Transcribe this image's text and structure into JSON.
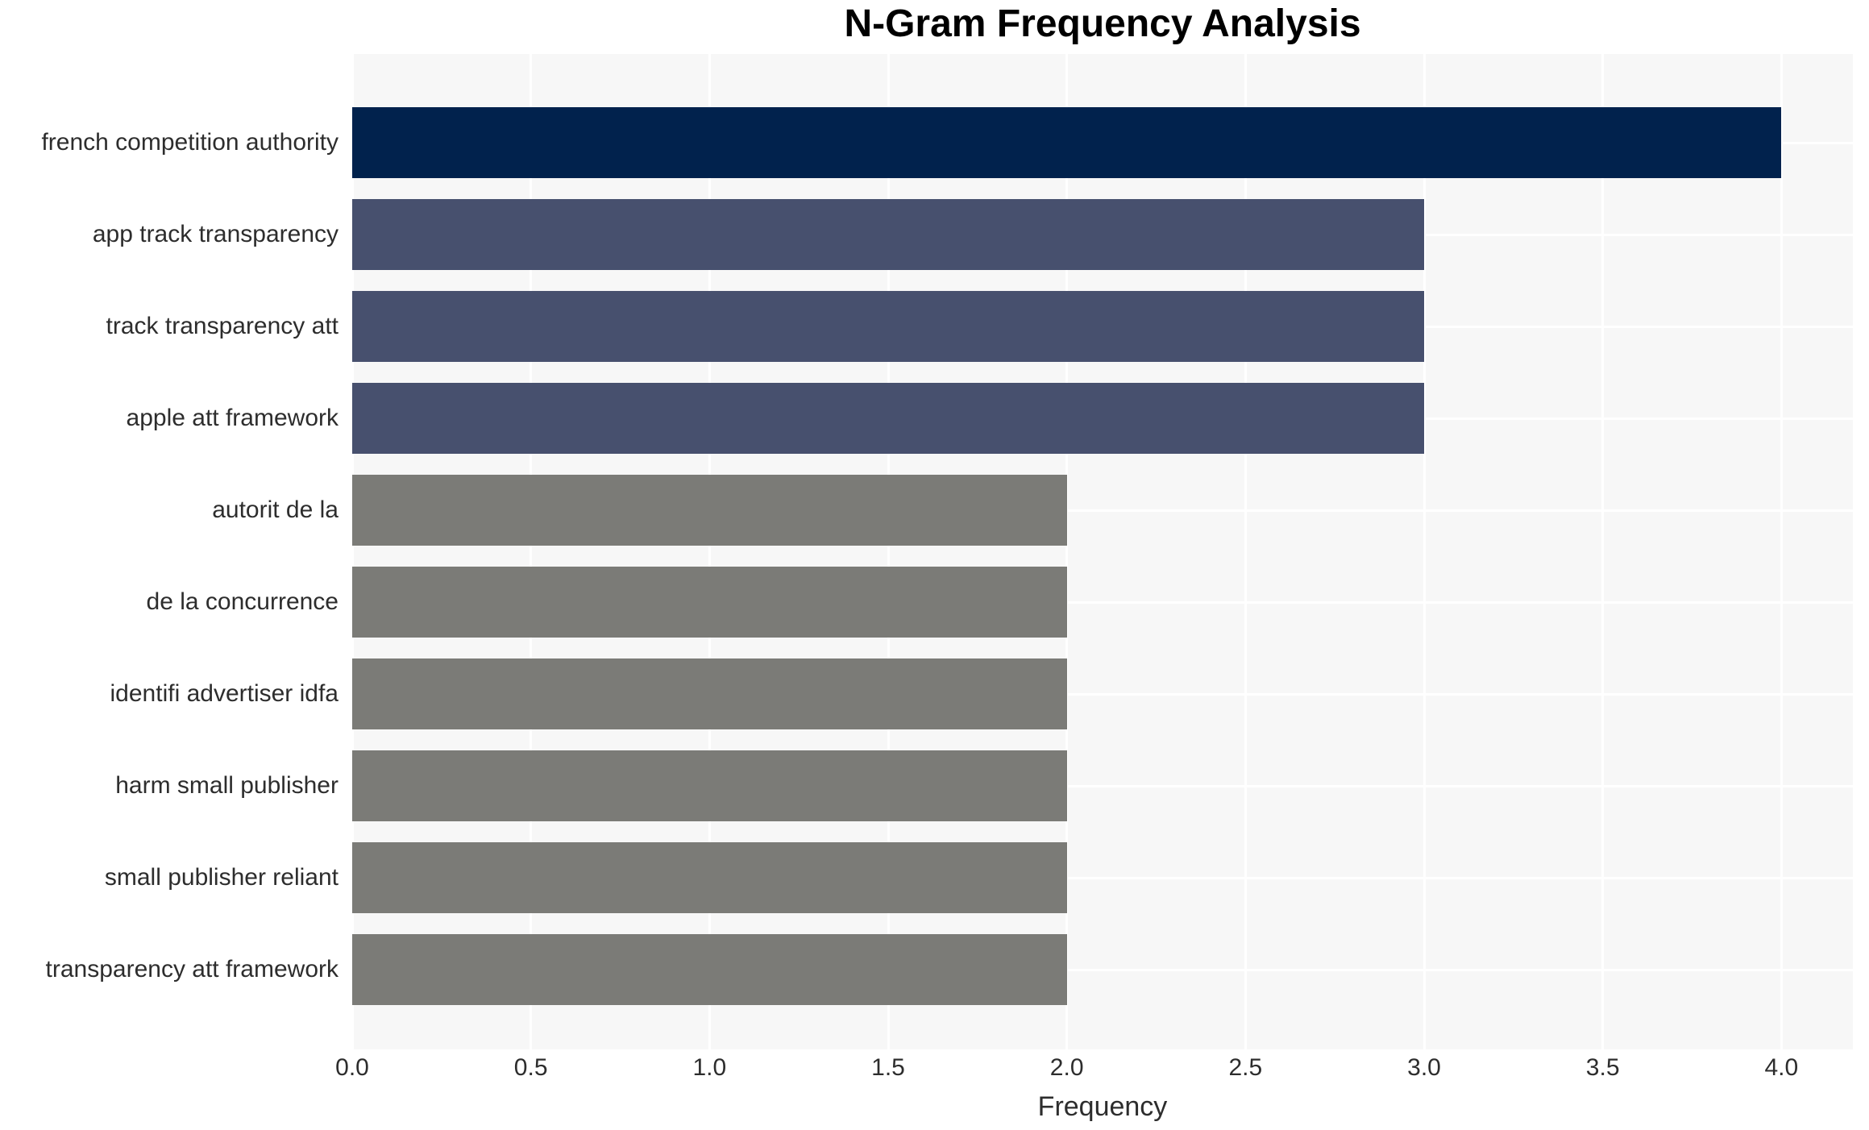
{
  "chart_data": {
    "type": "bar",
    "orientation": "horizontal",
    "title": "N-Gram Frequency Analysis",
    "xlabel": "Frequency",
    "ylabel": "",
    "categories": [
      "french competition authority",
      "app track transparency",
      "track transparency att",
      "apple att framework",
      "autorit de la",
      "de la concurrence",
      "identifi advertiser idfa",
      "harm small publisher",
      "small publisher reliant",
      "transparency att framework"
    ],
    "values": [
      4,
      3,
      3,
      3,
      2,
      2,
      2,
      2,
      2,
      2
    ],
    "bar_colors": [
      "#01224d",
      "#47506e",
      "#47506e",
      "#47506e",
      "#7b7b77",
      "#7b7b77",
      "#7b7b77",
      "#7b7b77",
      "#7b7b77",
      "#7b7b77"
    ],
    "xlim": [
      0,
      4.2
    ],
    "xticks": [
      0.0,
      0.5,
      1.0,
      1.5,
      2.0,
      2.5,
      3.0,
      3.5,
      4.0
    ],
    "xtick_labels": [
      "0.0",
      "0.5",
      "1.0",
      "1.5",
      "2.0",
      "2.5",
      "3.0",
      "3.5",
      "4.0"
    ],
    "grid": "white major gridlines (vertical at each x tick, horizontal at each category center) on light gray panel",
    "legend_position": "none",
    "colors": {
      "panel_bg": "#f7f7f7",
      "gridline": "#ffffff",
      "tick_text": "#2d2d2d",
      "title_text": "#000000"
    }
  }
}
